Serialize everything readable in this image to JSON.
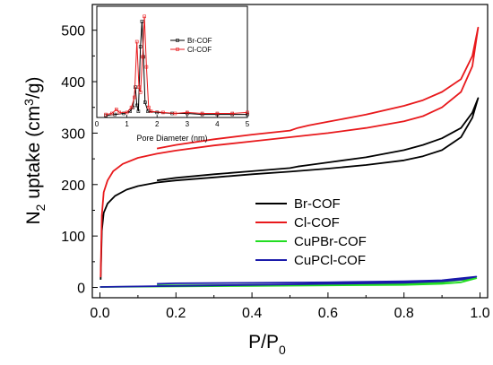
{
  "chart_data": {
    "type": "line",
    "title": "",
    "xlabel_main": "P/P",
    "xlabel_sub": "0",
    "ylabel_prefix": "N",
    "ylabel_sub": "2",
    "ylabel_mid": " uptake (cm",
    "ylabel_sup": "3",
    "ylabel_suffix": "/g)",
    "xlim": [
      -0.02,
      1.02
    ],
    "ylim": [
      -20,
      550
    ],
    "xticks": [
      "0.0",
      "0.2",
      "0.4",
      "0.6",
      "0.8",
      "1.0"
    ],
    "yticks": [
      "0",
      "100",
      "200",
      "300",
      "400",
      "500"
    ],
    "legend_position": "center-right",
    "series": [
      {
        "name": "Br-COF",
        "color": "#000000",
        "adsorption": [
          [
            0.002,
            15
          ],
          [
            0.005,
            110
          ],
          [
            0.01,
            145
          ],
          [
            0.02,
            163
          ],
          [
            0.04,
            178
          ],
          [
            0.07,
            190
          ],
          [
            0.1,
            197
          ],
          [
            0.15,
            204
          ],
          [
            0.2,
            208
          ],
          [
            0.3,
            214
          ],
          [
            0.4,
            220
          ],
          [
            0.5,
            225
          ],
          [
            0.6,
            231
          ],
          [
            0.7,
            238
          ],
          [
            0.8,
            247
          ],
          [
            0.85,
            255
          ],
          [
            0.9,
            267
          ],
          [
            0.95,
            292
          ],
          [
            0.98,
            330
          ],
          [
            0.995,
            368
          ]
        ],
        "desorption": [
          [
            0.995,
            368
          ],
          [
            0.98,
            340
          ],
          [
            0.95,
            310
          ],
          [
            0.9,
            290
          ],
          [
            0.85,
            277
          ],
          [
            0.8,
            267
          ],
          [
            0.7,
            253
          ],
          [
            0.6,
            243
          ],
          [
            0.55,
            238
          ],
          [
            0.52,
            235
          ],
          [
            0.5,
            232
          ],
          [
            0.4,
            226
          ],
          [
            0.3,
            220
          ],
          [
            0.2,
            213
          ],
          [
            0.15,
            208
          ]
        ]
      },
      {
        "name": "Cl-COF",
        "color": "#e8191c",
        "adsorption": [
          [
            0.002,
            20
          ],
          [
            0.005,
            140
          ],
          [
            0.01,
            185
          ],
          [
            0.02,
            208
          ],
          [
            0.035,
            226
          ],
          [
            0.06,
            240
          ],
          [
            0.1,
            252
          ],
          [
            0.15,
            260
          ],
          [
            0.2,
            266
          ],
          [
            0.3,
            276
          ],
          [
            0.4,
            284
          ],
          [
            0.5,
            292
          ],
          [
            0.6,
            300
          ],
          [
            0.7,
            310
          ],
          [
            0.8,
            323
          ],
          [
            0.85,
            333
          ],
          [
            0.9,
            350
          ],
          [
            0.95,
            380
          ],
          [
            0.98,
            430
          ],
          [
            0.995,
            505
          ]
        ],
        "desorption": [
          [
            0.995,
            505
          ],
          [
            0.98,
            450
          ],
          [
            0.95,
            405
          ],
          [
            0.9,
            380
          ],
          [
            0.85,
            364
          ],
          [
            0.8,
            353
          ],
          [
            0.7,
            336
          ],
          [
            0.6,
            322
          ],
          [
            0.55,
            315
          ],
          [
            0.52,
            310
          ],
          [
            0.5,
            305
          ],
          [
            0.4,
            297
          ],
          [
            0.3,
            288
          ],
          [
            0.2,
            277
          ],
          [
            0.15,
            270
          ]
        ]
      },
      {
        "name": "CuPBr-COF",
        "color": "#22dd22",
        "adsorption": [
          [
            0.0,
            1
          ],
          [
            0.2,
            2
          ],
          [
            0.4,
            3
          ],
          [
            0.6,
            4
          ],
          [
            0.8,
            5
          ],
          [
            0.9,
            7
          ],
          [
            0.95,
            10
          ],
          [
            0.99,
            18
          ]
        ],
        "desorption": [
          [
            0.99,
            18
          ],
          [
            0.9,
            10
          ],
          [
            0.8,
            8
          ],
          [
            0.6,
            6
          ],
          [
            0.4,
            5
          ],
          [
            0.2,
            4
          ],
          [
            0.15,
            4
          ]
        ]
      },
      {
        "name": "CuPCl-COF",
        "color": "#1a1aaa",
        "adsorption": [
          [
            0.0,
            1
          ],
          [
            0.2,
            3
          ],
          [
            0.4,
            5
          ],
          [
            0.6,
            7
          ],
          [
            0.8,
            9
          ],
          [
            0.9,
            12
          ],
          [
            0.95,
            15
          ],
          [
            0.99,
            21
          ]
        ],
        "desorption": [
          [
            0.99,
            21
          ],
          [
            0.9,
            14
          ],
          [
            0.8,
            12
          ],
          [
            0.6,
            10
          ],
          [
            0.4,
            9
          ],
          [
            0.2,
            8
          ],
          [
            0.15,
            7
          ]
        ]
      }
    ],
    "inset": {
      "xlabel": "Pore Diameter (nm)",
      "xlim": [
        0,
        5
      ],
      "ylim": [
        0,
        1.1
      ],
      "xticks": [
        "0",
        "1",
        "2",
        "3",
        "4",
        "5"
      ],
      "series": [
        {
          "name": "Br-COF",
          "color": "#000000",
          "points": [
            [
              0.3,
              0.02
            ],
            [
              0.6,
              0.03
            ],
            [
              0.9,
              0.04
            ],
            [
              1.1,
              0.06
            ],
            [
              1.2,
              0.1
            ],
            [
              1.28,
              0.3
            ],
            [
              1.33,
              0.12
            ],
            [
              1.38,
              0.06
            ],
            [
              1.45,
              0.7
            ],
            [
              1.5,
              0.95
            ],
            [
              1.55,
              0.6
            ],
            [
              1.6,
              0.15
            ],
            [
              1.7,
              0.06
            ],
            [
              2.0,
              0.05
            ],
            [
              2.5,
              0.04
            ],
            [
              3.0,
              0.04
            ],
            [
              3.5,
              0.03
            ],
            [
              4.0,
              0.03
            ],
            [
              4.5,
              0.03
            ],
            [
              5.0,
              0.03
            ]
          ]
        },
        {
          "name": "Cl-COF",
          "color": "#e8191c",
          "points": [
            [
              0.3,
              0.03
            ],
            [
              0.5,
              0.04
            ],
            [
              0.65,
              0.08
            ],
            [
              0.75,
              0.05
            ],
            [
              1.0,
              0.05
            ],
            [
              1.15,
              0.1
            ],
            [
              1.25,
              0.2
            ],
            [
              1.33,
              0.75
            ],
            [
              1.4,
              0.3
            ],
            [
              1.45,
              0.25
            ],
            [
              1.52,
              0.6
            ],
            [
              1.58,
              1.0
            ],
            [
              1.65,
              0.5
            ],
            [
              1.72,
              0.1
            ],
            [
              1.8,
              0.06
            ],
            [
              2.2,
              0.05
            ],
            [
              2.6,
              0.04
            ],
            [
              3.0,
              0.05
            ],
            [
              3.5,
              0.04
            ],
            [
              4.0,
              0.04
            ],
            [
              4.5,
              0.04
            ],
            [
              5.0,
              0.05
            ]
          ]
        }
      ]
    }
  }
}
